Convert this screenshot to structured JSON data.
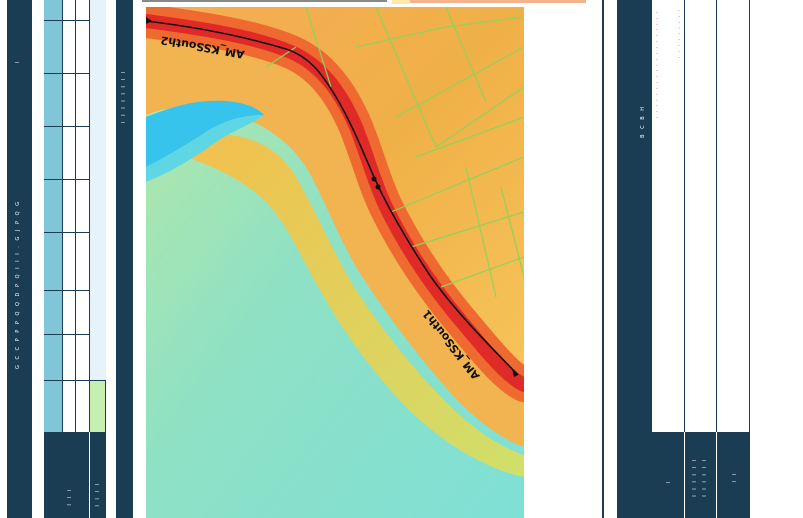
{
  "left_panel": {
    "strip_text_1": "I",
    "strip_text_2": "G C C P P P Q Q D P Q I I I . G J P Q G"
  },
  "table": {
    "bottom_text_1": "I I I",
    "bottom_text_2": "I I I I"
  },
  "middle_strip": {
    "text": "I I I I I I I I"
  },
  "map": {
    "label_1": "AM_KSSouth2",
    "label_2": "AM_KSSouth1",
    "colors": {
      "water": "#36c3ec",
      "low": "#7fe0d6",
      "mid": "#f0b048",
      "high": "#ee6a30",
      "ridge": "#e02a28"
    }
  },
  "right_panel": {
    "strip_text": "B C B H",
    "column_text_1": "I I I I I I I I I I I I I I I I I I I",
    "column_text_2": "I I I I I I I I I",
    "bottom_text_1": "I",
    "bottom_text_2": "I I I I I I",
    "bottom_text_3": "I I I I I I",
    "bottom_text_4": "I I"
  }
}
